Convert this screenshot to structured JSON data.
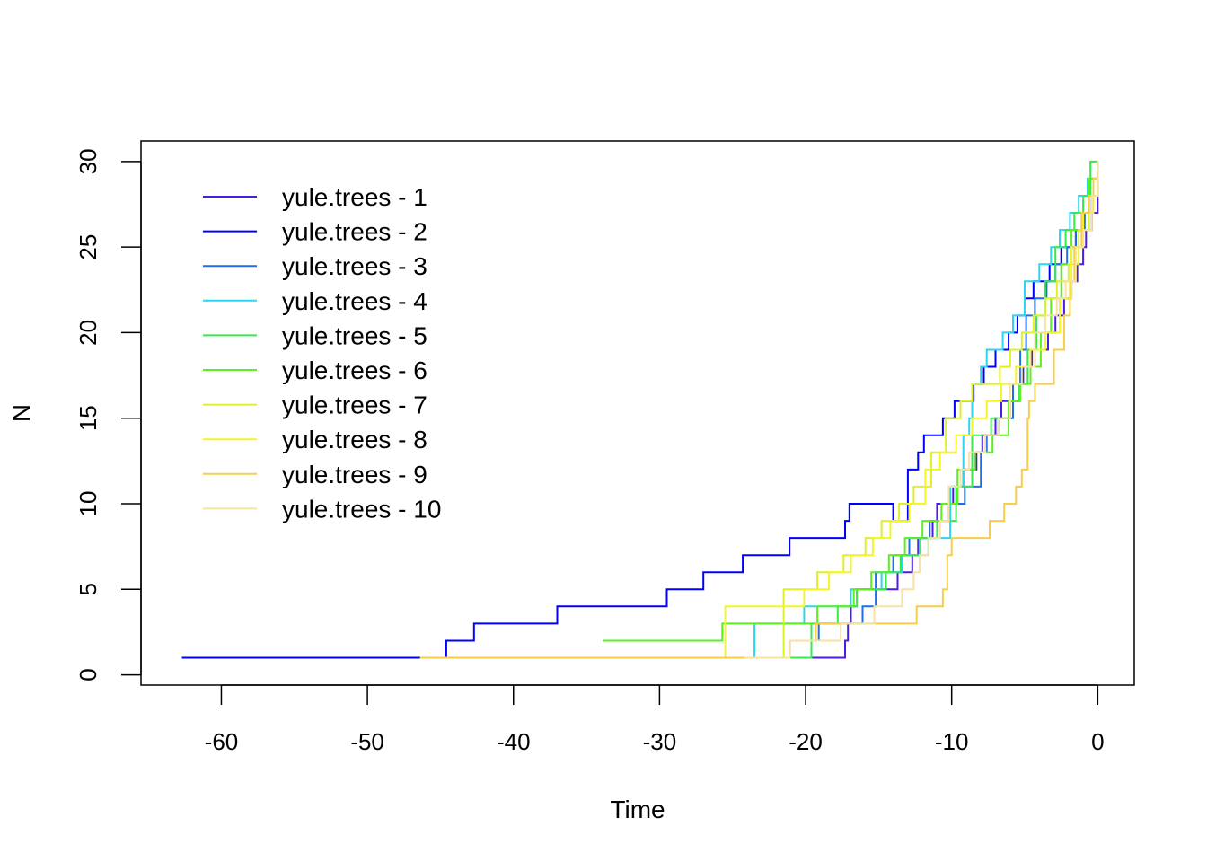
{
  "chart_data": {
    "type": "line",
    "step": true,
    "xlabel": "Time",
    "ylabel": "N",
    "xlim": [
      -65.5,
      2.5
    ],
    "ylim": [
      -0.6,
      31.2
    ],
    "x_ticks": [
      -60,
      -50,
      -40,
      -30,
      -20,
      -10,
      0
    ],
    "x_tick_labels": [
      "-60",
      "-50",
      "-40",
      "-30",
      "-20",
      "-10",
      "0"
    ],
    "y_ticks": [
      0,
      5,
      10,
      15,
      20,
      25,
      30
    ],
    "y_tick_labels": [
      "0",
      "5",
      "10",
      "15",
      "20",
      "25",
      "30"
    ],
    "grid": false,
    "legend_position": "top-left",
    "series": [
      {
        "name": "yule.trees - 1",
        "color": "#4B1CE6",
        "x": [
          -52.6,
          -17.3,
          -17.1,
          -16.9,
          -16.5,
          -13.7,
          -12.7,
          -12.3,
          -11.3,
          -11.0,
          -9.9,
          -9.2,
          -8.3,
          -7.9,
          -7.0,
          -6.6,
          -5.4,
          -5.1,
          -4.5,
          -3.4,
          -2.9,
          -2.3,
          -1.8,
          -1.4,
          -1.0,
          -0.8,
          -0.4,
          0
        ],
        "y": [
          1,
          2,
          3,
          4,
          5,
          6,
          7,
          8,
          9,
          10,
          11,
          12,
          13,
          14,
          15,
          16,
          17,
          18,
          19,
          20,
          21,
          22,
          23,
          24,
          25,
          26,
          27,
          28
        ]
      },
      {
        "name": "yule.trees - 2",
        "color": "#0000FF",
        "x": [
          -62.7,
          -44.6,
          -42.7,
          -37.0,
          -29.5,
          -27.0,
          -24.3,
          -21.1,
          -17.8,
          -17.3,
          -17.0,
          -16.5,
          -14.0,
          -13.0,
          -12.3,
          -11.9,
          -11.5,
          -10.6,
          -9.8,
          -8.5,
          -7.8,
          -7.0,
          -6.1,
          -5.5,
          -5.0,
          -4.4,
          -3.3,
          -2.5,
          -1.5,
          -0.9,
          -0.4,
          0
        ],
        "y": [
          1,
          2,
          3,
          4,
          5,
          6,
          7,
          8,
          8,
          9,
          10,
          10,
          9,
          12,
          13,
          14,
          14,
          15,
          16,
          17,
          18,
          19,
          20,
          21,
          22,
          23,
          24,
          25,
          26,
          27,
          28,
          30
        ]
      },
      {
        "name": "yule.trees - 3",
        "color": "#1E6FE8",
        "x": [
          -33.0,
          -21.1,
          -19.1,
          -16.1,
          -15.2,
          -14.0,
          -12.9,
          -11.5,
          -10.2,
          -9.1,
          -8.0,
          -7.6,
          -6.8,
          -5.8,
          -5.3,
          -4.9,
          -4.3,
          -3.5,
          -2.9,
          -2.1,
          -1.5,
          -0.9,
          -0.3,
          0
        ],
        "y": [
          1,
          2,
          3,
          4,
          6,
          7,
          8,
          9,
          10,
          11,
          13,
          14,
          15,
          17,
          19,
          21,
          22,
          23,
          24,
          25,
          26,
          27,
          29,
          30
        ]
      },
      {
        "name": "yule.trees - 4",
        "color": "#2CD5F0",
        "x": [
          -32.6,
          -23.5,
          -20.1,
          -16.9,
          -14.8,
          -13.4,
          -11.6,
          -10.1,
          -9.2,
          -8.8,
          -8.6,
          -8.0,
          -7.6,
          -6.5,
          -5.8,
          -5.0,
          -4.0,
          -3.2,
          -2.6,
          -1.9,
          -1.3,
          -0.7,
          0
        ],
        "y": [
          1,
          3,
          4,
          5,
          6,
          7,
          8,
          11,
          14,
          15,
          17,
          18,
          19,
          20,
          21,
          23,
          24,
          25,
          26,
          27,
          28,
          29,
          30
        ]
      },
      {
        "name": "yule.trees - 5",
        "color": "#38E84C",
        "x": [
          -25.7,
          -19.6,
          -17.8,
          -16.5,
          -14.5,
          -13.5,
          -12.2,
          -11.0,
          -9.7,
          -8.6,
          -7.3,
          -6.0,
          -5.4,
          -4.8,
          -4.2,
          -3.6,
          -2.9,
          -2.2,
          -1.6,
          -1.0,
          -0.5,
          0
        ],
        "y": [
          1,
          3,
          4,
          5,
          6,
          7,
          8,
          9,
          11,
          14,
          15,
          16,
          17,
          19,
          21,
          23,
          25,
          26,
          27,
          28,
          30,
          30
        ]
      },
      {
        "name": "yule.trees - 6",
        "color": "#5CF01E",
        "x": [
          -33.9,
          -29.8,
          -25.7,
          -21.1,
          -19.2,
          -18.0,
          -16.7,
          -15.5,
          -14.3,
          -13.2,
          -12.0,
          -10.7,
          -9.6,
          -8.4,
          -7.2,
          -6.1,
          -5.3,
          -4.6,
          -3.9,
          -3.2,
          -2.5,
          -1.8,
          -1.1,
          -0.6,
          0
        ],
        "y": [
          2,
          2,
          3,
          3,
          4,
          4,
          5,
          6,
          7,
          8,
          9,
          10,
          12,
          13,
          14,
          16,
          17,
          18,
          20,
          22,
          24,
          26,
          27,
          29,
          30
        ]
      },
      {
        "name": "yule.trees - 7",
        "color": "#E0F028",
        "x": [
          -30.0,
          -21.5,
          -19.2,
          -17.4,
          -15.9,
          -14.8,
          -13.6,
          -12.6,
          -11.4,
          -10.4,
          -9.4,
          -8.6,
          -7.7,
          -6.7,
          -6.0,
          -5.2,
          -4.4,
          -3.6,
          -2.8,
          -2.0,
          -1.3,
          -0.6,
          0
        ],
        "y": [
          1,
          5,
          6,
          7,
          8,
          9,
          10,
          11,
          13,
          15,
          16,
          17,
          17,
          18,
          19,
          20,
          21,
          22,
          23,
          24,
          26,
          28,
          30
        ]
      },
      {
        "name": "yule.trees - 8",
        "color": "#F5F526",
        "x": [
          -28.4,
          -25.5,
          -22.7,
          -20.1,
          -18.4,
          -16.9,
          -15.4,
          -14.2,
          -12.9,
          -11.8,
          -10.8,
          -9.7,
          -8.6,
          -7.6,
          -6.6,
          -5.6,
          -4.6,
          -3.6,
          -2.6,
          -1.8,
          -1.0,
          -0.3,
          0
        ],
        "y": [
          1,
          4,
          4,
          5,
          6,
          7,
          8,
          9,
          10,
          12,
          13,
          14,
          15,
          16,
          17,
          18,
          19,
          20,
          22,
          25,
          27,
          29,
          30
        ]
      },
      {
        "name": "yule.trees - 9",
        "color": "#F8CD4A",
        "x": [
          -46.4,
          -21.1,
          -20.0,
          -19.3,
          -17.3,
          -12.4,
          -10.6,
          -10.3,
          -10.0,
          -9.7,
          -7.4,
          -6.4,
          -5.6,
          -5.2,
          -4.8,
          -4.7,
          -4.3,
          -3.0,
          -2.3,
          -1.9,
          -1.6,
          -1.1,
          -0.6,
          -0.3,
          0
        ],
        "y": [
          1,
          2,
          2,
          3,
          3,
          4,
          5,
          7,
          8,
          8,
          9,
          10,
          11,
          12,
          15,
          16,
          17,
          19,
          21,
          23,
          25,
          27,
          28,
          29,
          30
        ]
      },
      {
        "name": "yule.trees - 10",
        "color": "#F8E2A0",
        "x": [
          -24.2,
          -21.1,
          -17.6,
          -15.3,
          -13.4,
          -12.6,
          -12.2,
          -11.6,
          -10.8,
          -10.2,
          -9.4,
          -8.8,
          -7.7,
          -6.8,
          -6.0,
          -5.2,
          -4.3,
          -3.6,
          -2.8,
          -2.2,
          -1.5,
          -1.0,
          -0.4,
          0
        ],
        "y": [
          1,
          2,
          3,
          4,
          5,
          6,
          7,
          8,
          9,
          11,
          12,
          13,
          14,
          15,
          17,
          18,
          20,
          21,
          22,
          23,
          25,
          26,
          28,
          30
        ]
      }
    ]
  }
}
